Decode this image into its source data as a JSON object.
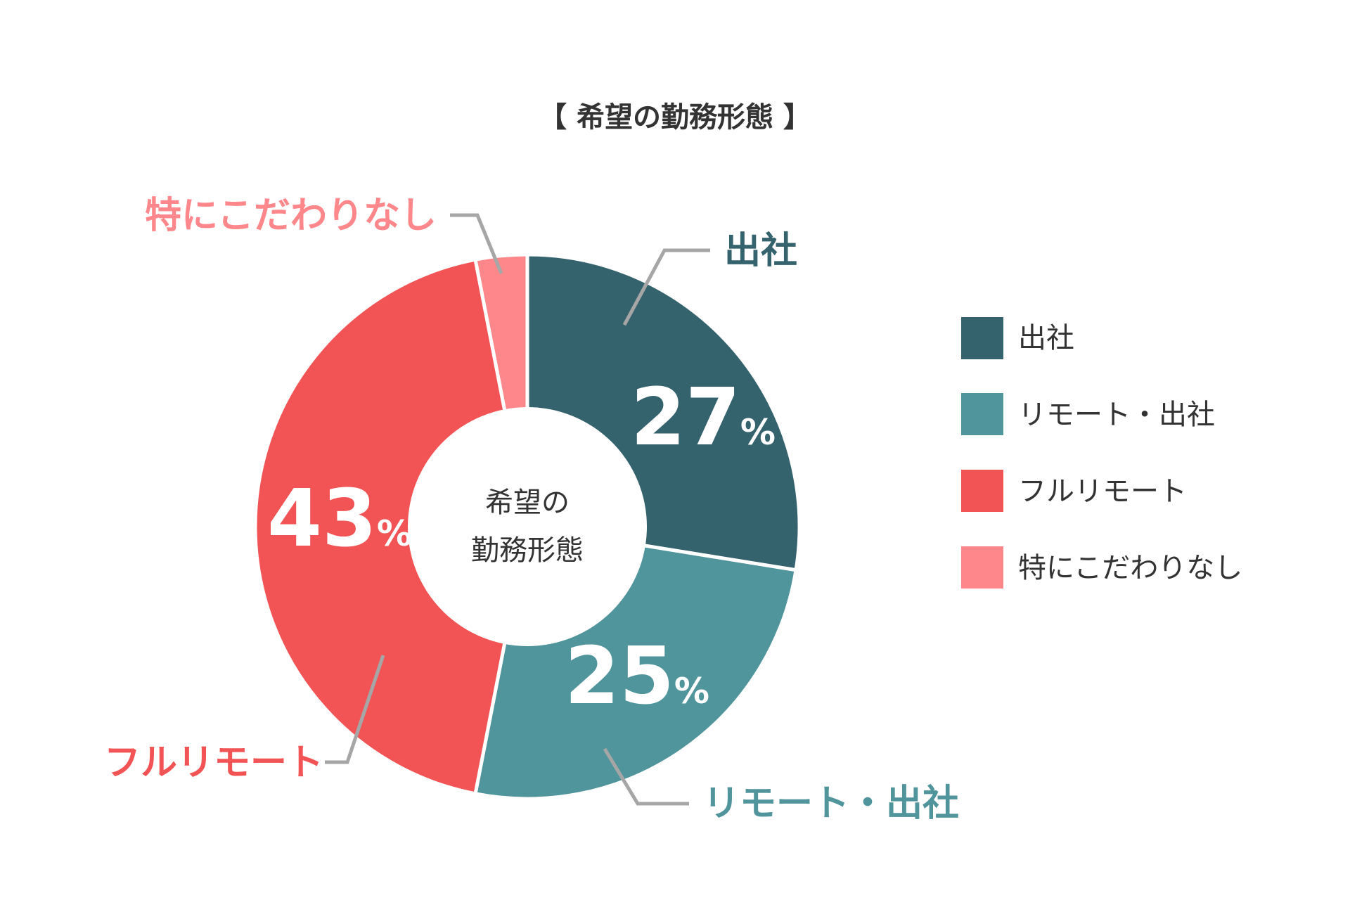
{
  "chart_data": {
    "type": "pie",
    "title": "【 希望の勤務形態 】",
    "center_label_lines": [
      "希望の",
      "勤務形態"
    ],
    "percent_symbol": "%",
    "slices": [
      {
        "label": "出社",
        "value": 27,
        "value_text": "27",
        "color": "#35636d"
      },
      {
        "label": "リモート・出社",
        "value": 25,
        "value_text": "25",
        "color": "#50959b"
      },
      {
        "label": "フルリモート",
        "value": 43,
        "value_text": "43",
        "color": "#f25456"
      },
      {
        "label": "特にこだわりなし",
        "value": 3,
        "value_text": "",
        "color": "#fe878b"
      }
    ],
    "legend": {
      "placement": "right",
      "items": [
        "出社",
        "リモート・出社",
        "フルリモート",
        "特にこだわりなし"
      ]
    }
  }
}
